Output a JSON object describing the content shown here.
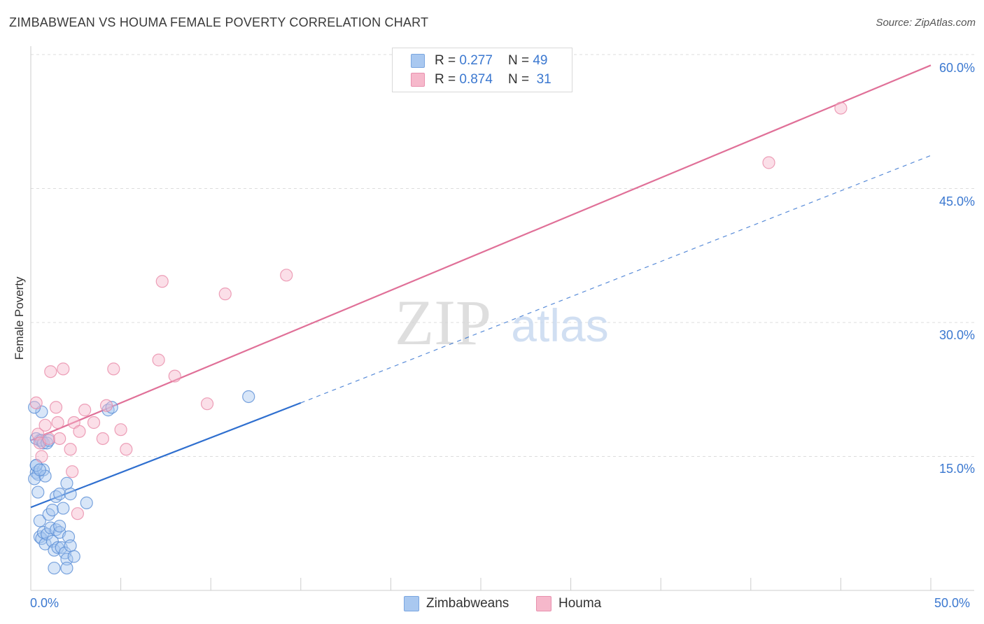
{
  "title": "ZIMBABWEAN VS HOUMA FEMALE POVERTY CORRELATION CHART",
  "source": "Source: ZipAtlas.com",
  "watermark": {
    "zip": "ZIP",
    "atlas": "atlas"
  },
  "legend": {
    "r_label": "R =",
    "n_label": "N =",
    "rows": [
      {
        "r": "0.277",
        "n": "49",
        "color": "#a9c8f0"
      },
      {
        "r": "0.874",
        "n": "31",
        "color": "#f6b8cb"
      }
    ]
  },
  "bottom_legend": [
    {
      "label": "Zimbabweans",
      "color": "#a9c8f0"
    },
    {
      "label": "Houma",
      "color": "#f6b8cb"
    }
  ],
  "chart_data": {
    "type": "scatter",
    "title": "ZIMBABWEAN VS HOUMA FEMALE POVERTY CORRELATION CHART",
    "xlabel": "",
    "ylabel": "Female Poverty",
    "xlim": [
      0,
      50
    ],
    "ylim": [
      0,
      60
    ],
    "x_tick_labels": {
      "left": "0.0%",
      "right": "50.0%"
    },
    "y_ticks": [
      {
        "value": 15,
        "label": "15.0%"
      },
      {
        "value": 30,
        "label": "30.0%"
      },
      {
        "value": 45,
        "label": "45.0%"
      },
      {
        "value": 60,
        "label": "60.0%"
      }
    ],
    "series": [
      {
        "name": "Zimbabweans",
        "color": "#5b8fd6",
        "fill": "#a9c8f0",
        "line_color": "#2f6fcf",
        "trend": {
          "x0": 0,
          "y0": 9.3,
          "x1": 15,
          "y1": 21.0,
          "x_dash_end": 50,
          "y_dash_end": 48.7
        },
        "points": [
          [
            0.3,
            13.2
          ],
          [
            0.5,
            16.8
          ],
          [
            0.6,
            20.0
          ],
          [
            0.3,
            17.0
          ],
          [
            0.4,
            13.0
          ],
          [
            0.2,
            12.5
          ],
          [
            0.3,
            14.0
          ],
          [
            0.4,
            11.0
          ],
          [
            0.5,
            7.8
          ],
          [
            0.5,
            6.0
          ],
          [
            0.6,
            5.8
          ],
          [
            0.7,
            6.5
          ],
          [
            0.8,
            5.2
          ],
          [
            0.9,
            6.3
          ],
          [
            1.0,
            8.5
          ],
          [
            1.1,
            7.0
          ],
          [
            1.2,
            9.0
          ],
          [
            1.2,
            5.5
          ],
          [
            1.3,
            4.5
          ],
          [
            1.3,
            2.5
          ],
          [
            1.4,
            6.8
          ],
          [
            1.5,
            4.8
          ],
          [
            1.6,
            6.5
          ],
          [
            1.7,
            4.8
          ],
          [
            1.4,
            10.5
          ],
          [
            1.6,
            10.8
          ],
          [
            1.6,
            7.2
          ],
          [
            1.8,
            9.2
          ],
          [
            1.9,
            4.2
          ],
          [
            2.0,
            3.5
          ],
          [
            2.0,
            2.5
          ],
          [
            2.1,
            6.0
          ],
          [
            2.2,
            5.0
          ],
          [
            2.2,
            10.8
          ],
          [
            2.0,
            12.0
          ],
          [
            2.4,
            3.8
          ],
          [
            3.1,
            9.8
          ],
          [
            0.6,
            16.8
          ],
          [
            0.7,
            16.5
          ],
          [
            0.7,
            13.5
          ],
          [
            0.8,
            12.8
          ],
          [
            0.9,
            16.5
          ],
          [
            1.0,
            16.8
          ],
          [
            4.3,
            20.2
          ],
          [
            4.5,
            20.5
          ],
          [
            12.1,
            21.7
          ],
          [
            0.2,
            20.5
          ],
          [
            0.3,
            14.0
          ],
          [
            0.5,
            13.5
          ]
        ]
      },
      {
        "name": "Houma",
        "color": "#e88aa8",
        "fill": "#f6b8cb",
        "line_color": "#e07098",
        "trend": {
          "x0": 0,
          "y0": 16.8,
          "x1": 50,
          "y1": 58.8
        },
        "points": [
          [
            0.3,
            21.0
          ],
          [
            0.4,
            17.5
          ],
          [
            0.5,
            16.5
          ],
          [
            0.6,
            15.0
          ],
          [
            0.8,
            18.5
          ],
          [
            1.0,
            17.0
          ],
          [
            1.1,
            24.5
          ],
          [
            1.4,
            20.5
          ],
          [
            1.5,
            18.8
          ],
          [
            1.6,
            17.0
          ],
          [
            1.8,
            24.8
          ],
          [
            2.2,
            15.8
          ],
          [
            2.3,
            13.3
          ],
          [
            2.4,
            18.8
          ],
          [
            2.6,
            8.6
          ],
          [
            2.7,
            17.8
          ],
          [
            3.0,
            20.2
          ],
          [
            3.5,
            18.8
          ],
          [
            4.0,
            17.0
          ],
          [
            4.2,
            20.7
          ],
          [
            4.6,
            24.8
          ],
          [
            5.0,
            18.0
          ],
          [
            5.3,
            15.8
          ],
          [
            7.1,
            25.8
          ],
          [
            7.3,
            34.6
          ],
          [
            8.0,
            24.0
          ],
          [
            9.8,
            20.9
          ],
          [
            10.8,
            33.2
          ],
          [
            14.2,
            35.3
          ],
          [
            41.0,
            47.9
          ],
          [
            45.0,
            54.0
          ]
        ]
      }
    ]
  }
}
